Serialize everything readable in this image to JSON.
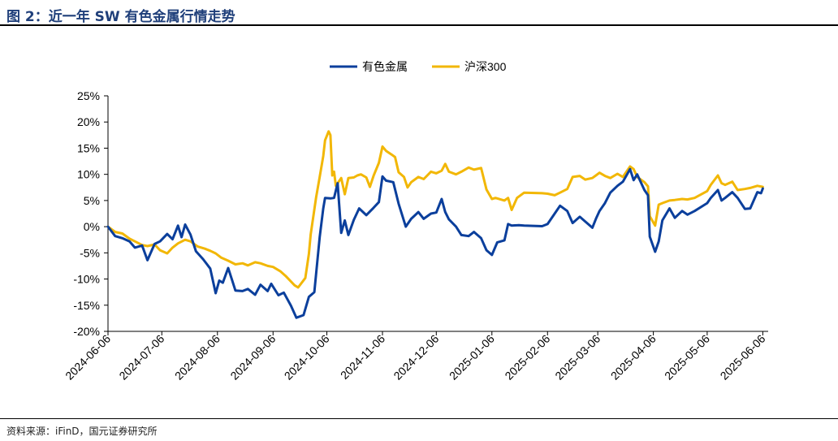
{
  "figure": {
    "title": "图 2：近一年 SW 有色金属行情走势",
    "source": "资料来源：iFinD，国元证券研究所"
  },
  "colors": {
    "series1": "#0b3f9c",
    "series2": "#f2b705",
    "axis": "#000000"
  },
  "chart_data": {
    "type": "line",
    "title": "",
    "xlabel": "",
    "ylabel": "",
    "legend_position": "top-center",
    "grid": false,
    "xlim": [
      "2024-06-06",
      "2025-06-09"
    ],
    "ylim": [
      -20,
      25
    ],
    "y_ticks": [
      -20,
      -15,
      -10,
      -5,
      0,
      5,
      10,
      15,
      20,
      25
    ],
    "y_tick_labels": [
      "-20%",
      "-15%",
      "-10%",
      "-5%",
      "0%",
      "5%",
      "10%",
      "15%",
      "20%",
      "25%"
    ],
    "x_ticks": [
      "2024-06-06",
      "2024-07-06",
      "2024-08-06",
      "2024-09-06",
      "2024-10-06",
      "2024-11-06",
      "2024-12-06",
      "2025-01-06",
      "2025-02-06",
      "2025-03-06",
      "2025-04-06",
      "2025-05-06",
      "2025-06-06"
    ],
    "series": [
      {
        "name": "有色金属",
        "color": "#0b3f9c",
        "points": [
          [
            "2024-06-06",
            0.0
          ],
          [
            "2024-06-10",
            -1.8
          ],
          [
            "2024-06-14",
            -2.2
          ],
          [
            "2024-06-18",
            -2.8
          ],
          [
            "2024-06-21",
            -4.0
          ],
          [
            "2024-06-25",
            -3.6
          ],
          [
            "2024-06-28",
            -6.4
          ],
          [
            "2024-07-02",
            -3.3
          ],
          [
            "2024-07-05",
            -2.8
          ],
          [
            "2024-07-09",
            -1.4
          ],
          [
            "2024-07-12",
            -2.4
          ],
          [
            "2024-07-15",
            0.2
          ],
          [
            "2024-07-17",
            -2.0
          ],
          [
            "2024-07-19",
            0.4
          ],
          [
            "2024-07-22",
            -1.5
          ],
          [
            "2024-07-25",
            -4.7
          ],
          [
            "2024-07-29",
            -6.2
          ],
          [
            "2024-08-02",
            -8.0
          ],
          [
            "2024-08-05",
            -12.7
          ],
          [
            "2024-08-07",
            -10.3
          ],
          [
            "2024-08-09",
            -10.7
          ],
          [
            "2024-08-12",
            -7.9
          ],
          [
            "2024-08-14",
            -10.0
          ],
          [
            "2024-08-16",
            -12.2
          ],
          [
            "2024-08-20",
            -12.3
          ],
          [
            "2024-08-23",
            -11.9
          ],
          [
            "2024-08-27",
            -13.0
          ],
          [
            "2024-08-30",
            -11.1
          ],
          [
            "2024-09-03",
            -12.3
          ],
          [
            "2024-09-05",
            -10.9
          ],
          [
            "2024-09-09",
            -13.1
          ],
          [
            "2024-09-12",
            -12.6
          ],
          [
            "2024-09-16",
            -15.1
          ],
          [
            "2024-09-19",
            -17.4
          ],
          [
            "2024-09-23",
            -16.9
          ],
          [
            "2024-09-26",
            -13.4
          ],
          [
            "2024-09-29",
            -12.5
          ],
          [
            "2024-09-30",
            -9.0
          ],
          [
            "2024-10-02",
            -2.0
          ],
          [
            "2024-10-04",
            3.5
          ],
          [
            "2024-10-05",
            5.5
          ],
          [
            "2024-10-08",
            5.4
          ],
          [
            "2024-10-10",
            5.5
          ],
          [
            "2024-10-12",
            8.3
          ],
          [
            "2024-10-14",
            -1.2
          ],
          [
            "2024-10-16",
            1.2
          ],
          [
            "2024-10-18",
            -1.6
          ],
          [
            "2024-10-21",
            1.3
          ],
          [
            "2024-10-24",
            3.5
          ],
          [
            "2024-10-28",
            2.2
          ],
          [
            "2024-11-01",
            3.6
          ],
          [
            "2024-11-04",
            4.7
          ],
          [
            "2024-11-06",
            9.6
          ],
          [
            "2024-11-08",
            8.8
          ],
          [
            "2024-11-12",
            8.5
          ],
          [
            "2024-11-15",
            4.4
          ],
          [
            "2024-11-19",
            0.0
          ],
          [
            "2024-11-22",
            1.5
          ],
          [
            "2024-11-26",
            2.8
          ],
          [
            "2024-11-29",
            1.5
          ],
          [
            "2024-12-03",
            2.5
          ],
          [
            "2024-12-06",
            2.7
          ],
          [
            "2024-12-09",
            5.3
          ],
          [
            "2024-12-11",
            2.8
          ],
          [
            "2024-12-13",
            1.4
          ],
          [
            "2024-12-17",
            0.0
          ],
          [
            "2024-12-20",
            -1.6
          ],
          [
            "2024-12-24",
            -1.8
          ],
          [
            "2024-12-27",
            -1.0
          ],
          [
            "2024-12-31",
            -2.2
          ],
          [
            "2025-01-03",
            -4.5
          ],
          [
            "2025-01-06",
            -5.4
          ],
          [
            "2025-01-09",
            -3.0
          ],
          [
            "2025-01-13",
            -2.6
          ],
          [
            "2025-01-15",
            0.5
          ],
          [
            "2025-01-17",
            0.2
          ],
          [
            "2025-01-21",
            0.3
          ],
          [
            "2025-01-24",
            0.2
          ],
          [
            "2025-02-03",
            0.1
          ],
          [
            "2025-02-06",
            0.5
          ],
          [
            "2025-02-10",
            2.5
          ],
          [
            "2025-02-13",
            4.0
          ],
          [
            "2025-02-17",
            3.0
          ],
          [
            "2025-02-20",
            0.7
          ],
          [
            "2025-02-24",
            1.9
          ],
          [
            "2025-02-27",
            1.0
          ],
          [
            "2025-03-03",
            -0.2
          ],
          [
            "2025-03-05",
            1.5
          ],
          [
            "2025-03-07",
            3.0
          ],
          [
            "2025-03-10",
            4.5
          ],
          [
            "2025-03-13",
            6.5
          ],
          [
            "2025-03-17",
            7.8
          ],
          [
            "2025-03-20",
            8.6
          ],
          [
            "2025-03-24",
            11.0
          ],
          [
            "2025-03-26",
            8.9
          ],
          [
            "2025-03-28",
            10.0
          ],
          [
            "2025-04-01",
            7.0
          ],
          [
            "2025-04-03",
            6.0
          ],
          [
            "2025-04-04",
            -1.9
          ],
          [
            "2025-04-07",
            -4.8
          ],
          [
            "2025-04-09",
            -2.8
          ],
          [
            "2025-04-11",
            1.2
          ],
          [
            "2025-04-15",
            3.5
          ],
          [
            "2025-04-18",
            1.7
          ],
          [
            "2025-04-22",
            3.0
          ],
          [
            "2025-04-25",
            2.3
          ],
          [
            "2025-04-29",
            3.0
          ],
          [
            "2025-05-06",
            4.5
          ],
          [
            "2025-05-08",
            5.5
          ],
          [
            "2025-05-12",
            7.0
          ],
          [
            "2025-05-14",
            5.0
          ],
          [
            "2025-05-16",
            5.5
          ],
          [
            "2025-05-20",
            6.6
          ],
          [
            "2025-05-23",
            5.5
          ],
          [
            "2025-05-27",
            3.4
          ],
          [
            "2025-05-30",
            3.5
          ],
          [
            "2025-06-03",
            6.6
          ],
          [
            "2025-06-05",
            6.4
          ],
          [
            "2025-06-06",
            7.3
          ]
        ]
      },
      {
        "name": "沪深300",
        "color": "#f2b705",
        "points": [
          [
            "2024-06-06",
            0.0
          ],
          [
            "2024-06-10",
            -1.0
          ],
          [
            "2024-06-14",
            -1.3
          ],
          [
            "2024-06-18",
            -2.3
          ],
          [
            "2024-06-21",
            -2.8
          ],
          [
            "2024-06-25",
            -3.5
          ],
          [
            "2024-06-28",
            -3.7
          ],
          [
            "2024-07-02",
            -3.4
          ],
          [
            "2024-07-05",
            -4.5
          ],
          [
            "2024-07-09",
            -5.1
          ],
          [
            "2024-07-12",
            -4.0
          ],
          [
            "2024-07-15",
            -3.2
          ],
          [
            "2024-07-19",
            -2.5
          ],
          [
            "2024-07-22",
            -2.8
          ],
          [
            "2024-07-26",
            -3.8
          ],
          [
            "2024-07-30",
            -4.2
          ],
          [
            "2024-08-02",
            -4.6
          ],
          [
            "2024-08-05",
            -5.1
          ],
          [
            "2024-08-08",
            -5.9
          ],
          [
            "2024-08-12",
            -6.5
          ],
          [
            "2024-08-16",
            -7.2
          ],
          [
            "2024-08-20",
            -7.0
          ],
          [
            "2024-08-23",
            -7.4
          ],
          [
            "2024-08-27",
            -6.8
          ],
          [
            "2024-08-30",
            -7.0
          ],
          [
            "2024-09-03",
            -7.5
          ],
          [
            "2024-09-06",
            -7.7
          ],
          [
            "2024-09-10",
            -8.5
          ],
          [
            "2024-09-13",
            -9.4
          ],
          [
            "2024-09-18",
            -11.2
          ],
          [
            "2024-09-20",
            -11.6
          ],
          [
            "2024-09-24",
            -9.8
          ],
          [
            "2024-09-26",
            -5.2
          ],
          [
            "2024-09-27",
            -1.5
          ],
          [
            "2024-09-30",
            5.6
          ],
          [
            "2024-10-02",
            9.5
          ],
          [
            "2024-10-04",
            13.5
          ],
          [
            "2024-10-05",
            16.5
          ],
          [
            "2024-10-07",
            18.2
          ],
          [
            "2024-10-08",
            17.5
          ],
          [
            "2024-10-09",
            9.8
          ],
          [
            "2024-10-10",
            10.5
          ],
          [
            "2024-10-11",
            7.8
          ],
          [
            "2024-10-14",
            9.3
          ],
          [
            "2024-10-16",
            6.2
          ],
          [
            "2024-10-18",
            9.3
          ],
          [
            "2024-10-21",
            9.4
          ],
          [
            "2024-10-23",
            9.8
          ],
          [
            "2024-10-25",
            10.0
          ],
          [
            "2024-10-28",
            9.4
          ],
          [
            "2024-10-30",
            7.6
          ],
          [
            "2024-11-01",
            9.7
          ],
          [
            "2024-11-04",
            12.2
          ],
          [
            "2024-11-06",
            15.3
          ],
          [
            "2024-11-08",
            14.5
          ],
          [
            "2024-11-11",
            13.8
          ],
          [
            "2024-11-13",
            13.3
          ],
          [
            "2024-11-15",
            10.4
          ],
          [
            "2024-11-18",
            9.5
          ],
          [
            "2024-11-20",
            7.5
          ],
          [
            "2024-11-22",
            8.5
          ],
          [
            "2024-11-26",
            9.5
          ],
          [
            "2024-11-29",
            9.1
          ],
          [
            "2024-12-03",
            10.5
          ],
          [
            "2024-12-06",
            10.2
          ],
          [
            "2024-12-09",
            10.7
          ],
          [
            "2024-12-11",
            12.0
          ],
          [
            "2024-12-13",
            10.5
          ],
          [
            "2024-12-17",
            10.0
          ],
          [
            "2024-12-20",
            10.5
          ],
          [
            "2024-12-24",
            11.3
          ],
          [
            "2024-12-27",
            10.9
          ],
          [
            "2024-12-31",
            11.2
          ],
          [
            "2025-01-03",
            7.1
          ],
          [
            "2025-01-06",
            5.3
          ],
          [
            "2025-01-08",
            5.5
          ],
          [
            "2025-01-13",
            5.0
          ],
          [
            "2025-01-15",
            5.5
          ],
          [
            "2025-01-17",
            3.2
          ],
          [
            "2025-01-20",
            5.5
          ],
          [
            "2025-01-24",
            6.5
          ],
          [
            "2025-02-03",
            6.4
          ],
          [
            "2025-02-06",
            6.3
          ],
          [
            "2025-02-10",
            6.0
          ],
          [
            "2025-02-13",
            6.5
          ],
          [
            "2025-02-17",
            7.2
          ],
          [
            "2025-02-20",
            9.5
          ],
          [
            "2025-02-24",
            9.7
          ],
          [
            "2025-02-27",
            9.0
          ],
          [
            "2025-03-03",
            9.3
          ],
          [
            "2025-03-05",
            9.8
          ],
          [
            "2025-03-07",
            10.3
          ],
          [
            "2025-03-10",
            9.7
          ],
          [
            "2025-03-13",
            9.3
          ],
          [
            "2025-03-17",
            10.1
          ],
          [
            "2025-03-20",
            9.5
          ],
          [
            "2025-03-24",
            11.5
          ],
          [
            "2025-03-26",
            11.0
          ],
          [
            "2025-03-28",
            9.5
          ],
          [
            "2025-04-01",
            8.5
          ],
          [
            "2025-04-03",
            7.7
          ],
          [
            "2025-04-04",
            2.0
          ],
          [
            "2025-04-07",
            0.2
          ],
          [
            "2025-04-09",
            4.2
          ],
          [
            "2025-04-11",
            4.5
          ],
          [
            "2025-04-15",
            5.0
          ],
          [
            "2025-04-18",
            5.1
          ],
          [
            "2025-04-22",
            5.3
          ],
          [
            "2025-04-25",
            5.2
          ],
          [
            "2025-04-29",
            5.5
          ],
          [
            "2025-05-06",
            6.8
          ],
          [
            "2025-05-08",
            8.0
          ],
          [
            "2025-05-12",
            9.8
          ],
          [
            "2025-05-14",
            8.3
          ],
          [
            "2025-05-16",
            8.0
          ],
          [
            "2025-05-20",
            8.6
          ],
          [
            "2025-05-23",
            7.0
          ],
          [
            "2025-05-27",
            7.2
          ],
          [
            "2025-05-30",
            7.4
          ],
          [
            "2025-06-03",
            7.8
          ],
          [
            "2025-06-06",
            7.6
          ]
        ]
      }
    ]
  }
}
